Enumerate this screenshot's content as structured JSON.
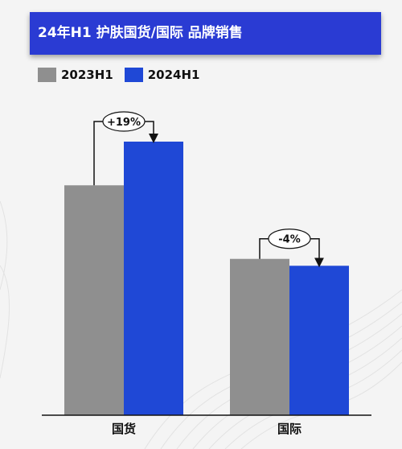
{
  "title": "24年H1 护肤国货/国际 品牌销售",
  "colors": {
    "title_bg": "#2a3bd3",
    "series_2023": "#8f8f8f",
    "series_2024": "#1f48d6",
    "background": "#f4f4f4"
  },
  "chart_data": {
    "type": "bar",
    "title": "24年H1 护肤国货/国际 品牌销售",
    "categories": [
      "国货",
      "国际"
    ],
    "series": [
      {
        "name": "2023H1",
        "values": [
          100,
          68
        ]
      },
      {
        "name": "2024H1",
        "values": [
          119,
          65
        ]
      }
    ],
    "annotations": [
      "+19%",
      "-4%"
    ],
    "ylim": [
      0,
      140
    ],
    "legend": "top-left",
    "grid": false,
    "xlabel": "",
    "ylabel": ""
  }
}
